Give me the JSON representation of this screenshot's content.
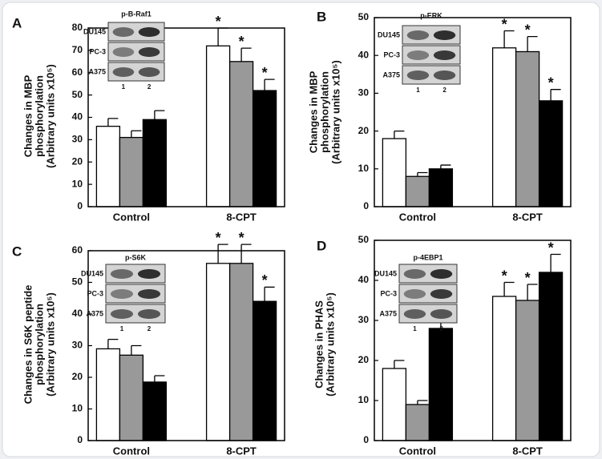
{
  "chart_data": [
    {
      "type": "bar",
      "panel_label": "A",
      "ylabel": [
        "Changes in MBP",
        "phosphorylation",
        "(Arbitrary units x10⁵)"
      ],
      "categories": [
        "Control",
        "8-CPT"
      ],
      "ylim": [
        0,
        80
      ],
      "yticks": [
        0,
        10,
        20,
        30,
        40,
        50,
        60,
        70,
        80
      ],
      "series": [
        {
          "color": "#ffffff",
          "values": [
            36,
            72
          ],
          "errors": [
            3.5,
            8
          ],
          "markers": [
            null,
            "*"
          ]
        },
        {
          "color": "#999999",
          "values": [
            31,
            65
          ],
          "errors": [
            3,
            6
          ],
          "markers": [
            null,
            "*"
          ]
        },
        {
          "color": "#000000",
          "values": [
            39,
            52
          ],
          "errors": [
            4,
            5
          ],
          "markers": [
            null,
            "*"
          ]
        }
      ],
      "inset": {
        "title": "p-B-Raf1",
        "rows": [
          "DU145",
          "PC-3",
          "A375"
        ],
        "lanes": [
          "1",
          "2"
        ]
      }
    },
    {
      "type": "bar",
      "panel_label": "B",
      "ylabel": [
        "Changes in MBP",
        "phosphorylation",
        "(Arbitrary units x10⁵)"
      ],
      "categories": [
        "Control",
        "8-CPT"
      ],
      "ylim": [
        0,
        50
      ],
      "yticks": [
        0,
        10,
        20,
        30,
        40,
        50
      ],
      "series": [
        {
          "color": "#ffffff",
          "values": [
            18,
            42
          ],
          "errors": [
            2,
            4.5
          ],
          "markers": [
            null,
            "*"
          ]
        },
        {
          "color": "#999999",
          "values": [
            8,
            41
          ],
          "errors": [
            1,
            4
          ],
          "markers": [
            null,
            "*"
          ]
        },
        {
          "color": "#000000",
          "values": [
            10,
            28
          ],
          "errors": [
            1,
            3
          ],
          "markers": [
            null,
            "*"
          ]
        }
      ],
      "inset": {
        "title": "p-ERK",
        "rows": [
          "DU145",
          "PC-3",
          "A375"
        ],
        "lanes": [
          "1",
          "2"
        ]
      }
    },
    {
      "type": "bar",
      "panel_label": "C",
      "ylabel": [
        "Changes in S6K peptide",
        "phosphorylation",
        "(Arbitrary units x10⁵)"
      ],
      "categories": [
        "Control",
        "8-CPT"
      ],
      "ylim": [
        0,
        60
      ],
      "yticks": [
        0,
        10,
        20,
        30,
        40,
        50,
        60
      ],
      "series": [
        {
          "color": "#ffffff",
          "values": [
            29,
            56
          ],
          "errors": [
            3,
            6
          ],
          "markers": [
            null,
            "*"
          ]
        },
        {
          "color": "#999999",
          "values": [
            27,
            56
          ],
          "errors": [
            3,
            6
          ],
          "markers": [
            null,
            "*"
          ]
        },
        {
          "color": "#000000",
          "values": [
            18.5,
            44
          ],
          "errors": [
            2,
            4.5
          ],
          "markers": [
            null,
            "*"
          ]
        }
      ],
      "inset": {
        "title": "p-S6K",
        "rows": [
          "DU145",
          "PC-3",
          "A375"
        ],
        "lanes": [
          "1",
          "2"
        ]
      }
    },
    {
      "type": "bar",
      "panel_label": "D",
      "ylabel": [
        "Changes in PHAS",
        "(Arbitrary units x10⁵)"
      ],
      "categories": [
        "Control",
        "8-CPT"
      ],
      "ylim": [
        0,
        50
      ],
      "yticks": [
        0,
        10,
        20,
        30,
        40,
        50
      ],
      "series": [
        {
          "color": "#ffffff",
          "values": [
            18,
            36
          ],
          "errors": [
            2,
            3.5
          ],
          "markers": [
            null,
            "*"
          ]
        },
        {
          "color": "#999999",
          "values": [
            9,
            35
          ],
          "errors": [
            1,
            4
          ],
          "markers": [
            null,
            "*"
          ]
        },
        {
          "color": "#000000",
          "values": [
            28,
            42
          ],
          "errors": [
            2,
            4.5
          ],
          "markers": [
            null,
            "*"
          ]
        }
      ],
      "inset": {
        "title": "p-4EBP1",
        "rows": [
          "DU145",
          "PC-3",
          "A375"
        ],
        "lanes": [
          "1",
          "2"
        ]
      }
    }
  ]
}
